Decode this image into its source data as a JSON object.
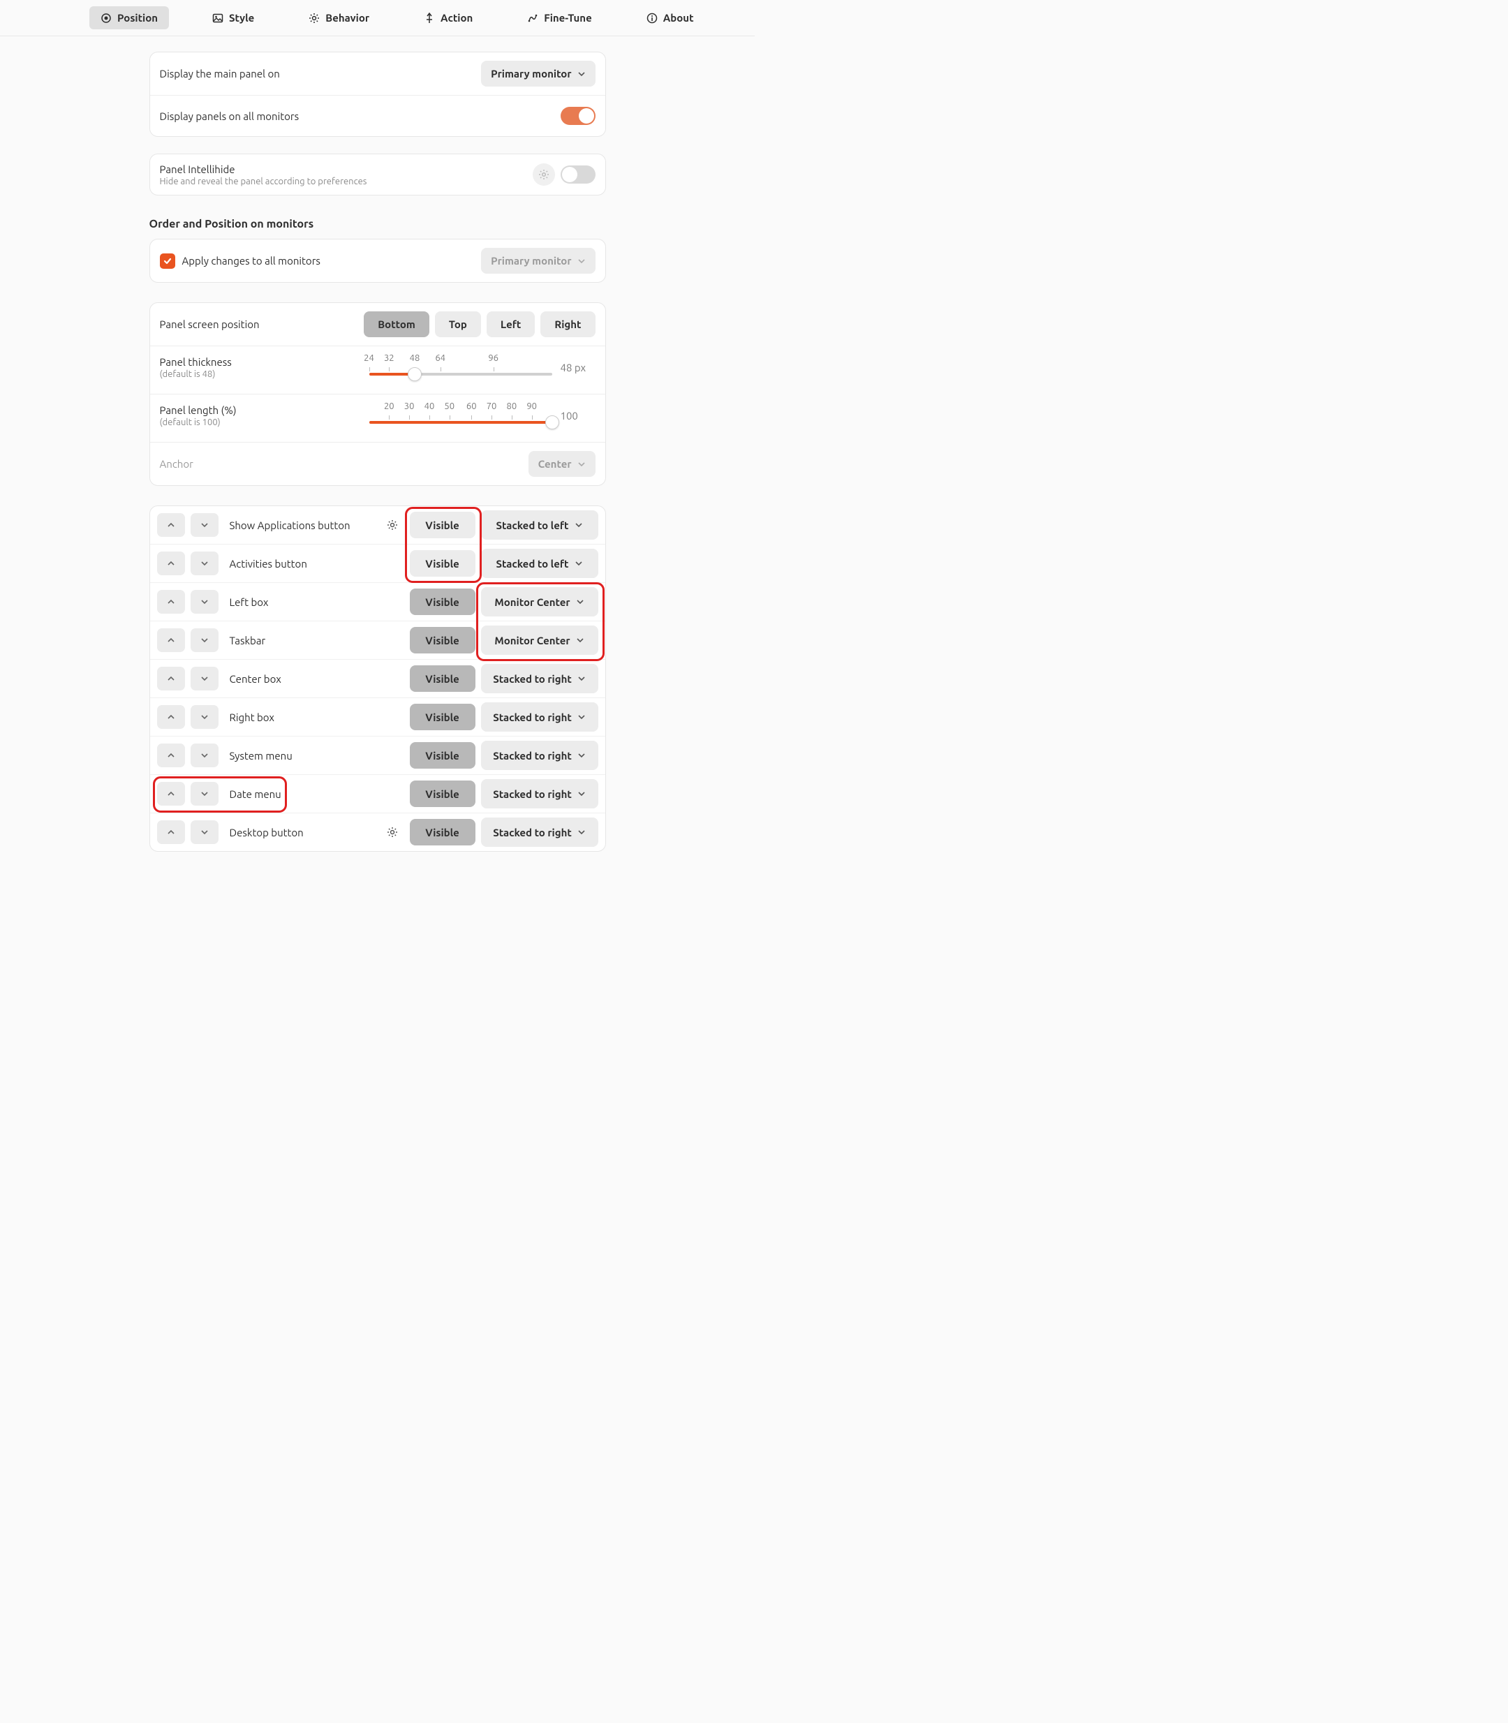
{
  "colors": {
    "accent": "#e95420",
    "toggle_on": "#e87b51",
    "bg": "#fafafa",
    "card_bg": "#ffffff",
    "border": "#e6e6e6",
    "btn_bg": "#ececec",
    "btn_active": "#b8b8b8",
    "text": "#2e2e2e",
    "text_muted": "#8a8a8a",
    "highlight_red": "#e02020"
  },
  "tabs": [
    {
      "label": "Position",
      "icon": "target-icon",
      "active": true
    },
    {
      "label": "Style",
      "icon": "image-icon",
      "active": false
    },
    {
      "label": "Behavior",
      "icon": "gear-icon",
      "active": false
    },
    {
      "label": "Action",
      "icon": "pin-icon",
      "active": false
    },
    {
      "label": "Fine-Tune",
      "icon": "tune-icon",
      "active": false
    },
    {
      "label": "About",
      "icon": "info-icon",
      "active": false
    }
  ],
  "display": {
    "main_panel_label": "Display the main panel on",
    "main_panel_value": "Primary monitor",
    "all_monitors_label": "Display panels on all monitors",
    "all_monitors_on": true
  },
  "intellihide": {
    "title": "Panel Intellihide",
    "subtitle": "Hide and reveal the panel according to preferences",
    "enabled": false
  },
  "order_section_title": "Order and Position on monitors",
  "apply_all": {
    "label": "Apply changes to all monitors",
    "checked": true,
    "monitor_value": "Primary monitor"
  },
  "screen_position": {
    "label": "Panel screen position",
    "options": [
      "Bottom",
      "Top",
      "Left",
      "Right"
    ],
    "selected": "Bottom"
  },
  "thickness": {
    "label": "Panel thickness",
    "hint": "(default is 48)",
    "ticks": [
      "24",
      "32",
      "48",
      "64",
      "96"
    ],
    "tick_positions_pct": [
      0,
      11,
      25,
      39,
      68
    ],
    "value_pct": 25,
    "value_text": "48 px"
  },
  "length": {
    "label": "Panel length (%)",
    "hint": "(default is 100)",
    "ticks": [
      "20",
      "30",
      "40",
      "50",
      "60",
      "70",
      "80",
      "90"
    ],
    "tick_positions_pct": [
      11,
      22,
      33,
      44,
      56,
      67,
      78,
      89
    ],
    "value_pct": 100,
    "value_text": "100"
  },
  "anchor": {
    "label": "Anchor",
    "value": "Center",
    "disabled": true
  },
  "items": [
    {
      "name": "Show Applications button",
      "gear": true,
      "visible_style": "light",
      "position": "Stacked to left",
      "vis_hi": true,
      "pos_hi": false,
      "row_hi": false
    },
    {
      "name": "Activities button",
      "gear": false,
      "visible_style": "light",
      "position": "Stacked to left",
      "vis_hi": true,
      "pos_hi": false,
      "row_hi": false
    },
    {
      "name": "Left box",
      "gear": false,
      "visible_style": "dark",
      "position": "Monitor Center",
      "vis_hi": false,
      "pos_hi": true,
      "row_hi": false
    },
    {
      "name": "Taskbar",
      "gear": false,
      "visible_style": "dark",
      "position": "Monitor Center",
      "vis_hi": false,
      "pos_hi": true,
      "row_hi": false
    },
    {
      "name": "Center box",
      "gear": false,
      "visible_style": "dark",
      "position": "Stacked to right",
      "vis_hi": false,
      "pos_hi": false,
      "row_hi": false
    },
    {
      "name": "Right box",
      "gear": false,
      "visible_style": "dark",
      "position": "Stacked to right",
      "vis_hi": false,
      "pos_hi": false,
      "row_hi": false
    },
    {
      "name": "System menu",
      "gear": false,
      "visible_style": "dark",
      "position": "Stacked to right",
      "vis_hi": false,
      "pos_hi": false,
      "row_hi": false
    },
    {
      "name": "Date menu",
      "gear": false,
      "visible_style": "dark",
      "position": "Stacked to right",
      "vis_hi": false,
      "pos_hi": false,
      "row_hi": true
    },
    {
      "name": "Desktop button",
      "gear": true,
      "visible_style": "dark",
      "position": "Stacked to right",
      "vis_hi": false,
      "pos_hi": false,
      "row_hi": false
    }
  ],
  "visible_label": "Visible"
}
